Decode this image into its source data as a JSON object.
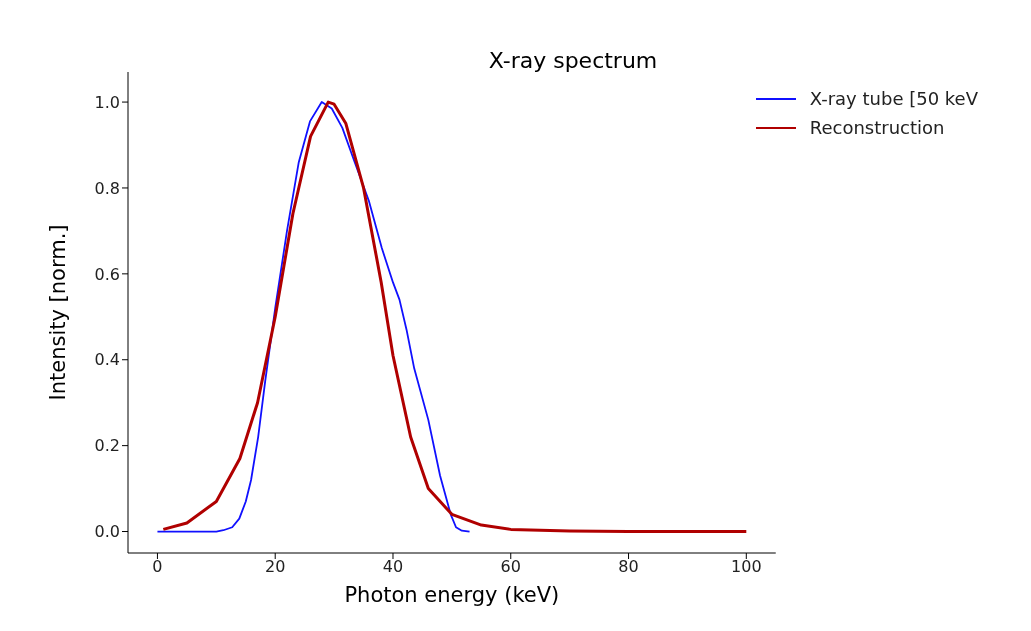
{
  "chart_data": {
    "type": "line",
    "title": "X-ray spectrum",
    "xlabel": "Photon energy (keV)",
    "ylabel": "Intensity [norm.]",
    "xlim": [
      -5,
      105
    ],
    "xticks": [
      0,
      20,
      40,
      60,
      80,
      100
    ],
    "ylim": [
      -0.05,
      1.07
    ],
    "yticks": [
      {
        "value": 0,
        "label": "0.0"
      },
      0.2,
      0.4,
      0.6,
      0.8,
      {
        "value": 1,
        "label": "1.0"
      }
    ],
    "grid": false,
    "legend": "top right",
    "marker": "none",
    "line_style": "solid",
    "series": [
      {
        "name": "X-ray tube [50 keV",
        "color": "#1010ff",
        "x": [
          0,
          5,
          10,
          11.2,
          12.7,
          13.9,
          15,
          15.9,
          17.1,
          18.3,
          20,
          22,
          24,
          25.9,
          27.9,
          29.6,
          31.4,
          33.5,
          35.9,
          38.1,
          40,
          41.1,
          42.3,
          43.6,
          46,
          48,
          49.8,
          50.7,
          51.7,
          53
        ],
        "values": [
          0,
          0,
          0,
          0.003,
          0.01,
          0.03,
          0.07,
          0.12,
          0.22,
          0.35,
          0.52,
          0.7,
          0.86,
          0.955,
          1.0,
          0.985,
          0.94,
          0.86,
          0.77,
          0.66,
          0.58,
          0.54,
          0.47,
          0.38,
          0.26,
          0.13,
          0.04,
          0.01,
          0.002,
          0
        ]
      },
      {
        "name": "Reconstruction",
        "color": "#b00000",
        "x": [
          1,
          5,
          10,
          14,
          17,
          20,
          23,
          26,
          29,
          30,
          32,
          35,
          38,
          40,
          43,
          46,
          50,
          55,
          60,
          70,
          80,
          100
        ],
        "values": [
          0.005,
          0.02,
          0.07,
          0.17,
          0.3,
          0.5,
          0.74,
          0.92,
          1.0,
          0.995,
          0.95,
          0.8,
          0.58,
          0.41,
          0.22,
          0.1,
          0.04,
          0.015,
          0.005,
          0.001,
          0,
          0
        ]
      }
    ]
  }
}
